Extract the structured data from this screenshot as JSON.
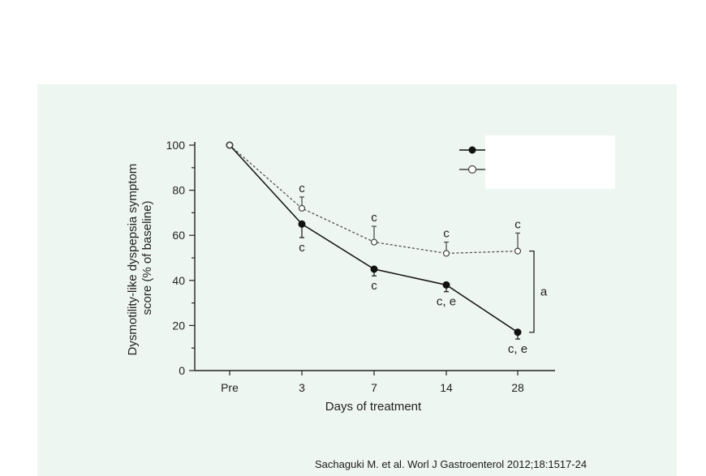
{
  "citation": "Sachaguki M. et al. Worl  J Gastroenterol 2012;18:1517-24",
  "colors": {
    "panel_bg": "#eef6f1",
    "axis": "#222222",
    "series_solid": "#111111",
    "series_open": "#444444"
  },
  "chart_data": {
    "type": "line",
    "title": "",
    "xlabel": "Days of treatment",
    "ylabel": [
      "Dysmotility-like dyspepsia symptom",
      "score (% of baseline)"
    ],
    "categories": [
      "Pre",
      "3",
      "7",
      "14",
      "28"
    ],
    "ylim": [
      0,
      100
    ],
    "yticks": [
      0,
      20,
      40,
      60,
      80,
      100
    ],
    "grid": false,
    "legend_position": "top-right",
    "series": [
      {
        "marker": "filled-circle",
        "line_style": "solid",
        "values": [
          100,
          65,
          45,
          38,
          17
        ],
        "errors": [
          0,
          6,
          3,
          3,
          3
        ],
        "error_direction": "down",
        "annotations": [
          "",
          "c",
          "c",
          "c, e",
          "c, e"
        ]
      },
      {
        "marker": "open-circle",
        "line_style": "dashed",
        "values": [
          100,
          72,
          57,
          52,
          53
        ],
        "errors": [
          0,
          5,
          7,
          5,
          8
        ],
        "error_direction": "up",
        "annotations": [
          "",
          "c",
          "c",
          "c",
          "c"
        ]
      }
    ],
    "bracket_label": "a"
  }
}
